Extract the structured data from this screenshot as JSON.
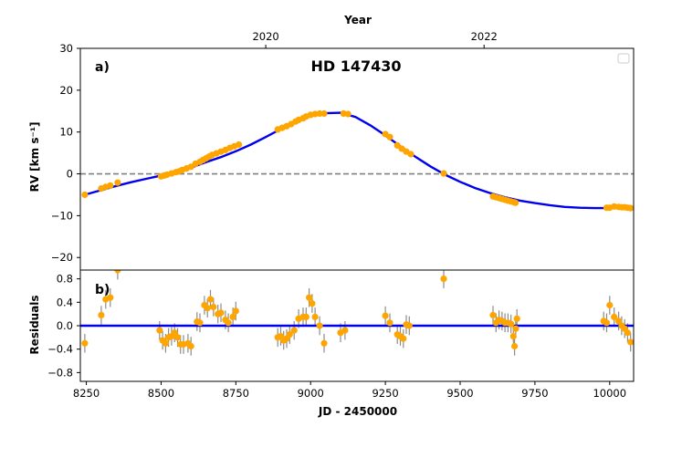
{
  "chart_data": {
    "type": "scatter",
    "title": "HD 147430",
    "xlabel": "JD - 2450000",
    "top_axis_label": "Year",
    "top_axis_ticks": [
      {
        "label": "2020",
        "jd": 8850
      },
      {
        "label": "2022",
        "jd": 9580
      }
    ],
    "x_ticks": [
      "8250",
      "8500",
      "8750",
      "9000",
      "9250",
      "9500",
      "9750",
      "10000"
    ],
    "xlim": [
      8230,
      10080
    ],
    "panels": [
      {
        "label": "a)",
        "ylabel": "RV [km s⁻¹]",
        "ylim": [
          -23,
          30
        ],
        "y_ticks": [
          "−20",
          "−10",
          "0",
          "10",
          "20",
          "30"
        ],
        "y_tick_values": [
          -20,
          -10,
          0,
          10,
          20,
          30
        ],
        "zero_line": "dashed",
        "legend": "top-right (empty)",
        "model_curve": {
          "color": "#0000ee",
          "x": [
            8250,
            8300,
            8350,
            8400,
            8450,
            8500,
            8550,
            8600,
            8650,
            8700,
            8750,
            8800,
            8850,
            8900,
            8950,
            9000,
            9050,
            9100,
            9150,
            9200,
            9250,
            9300,
            9350,
            9400,
            9450,
            9500,
            9550,
            9600,
            9650,
            9700,
            9750,
            9800,
            9850,
            9900,
            9950,
            10000,
            10050,
            10080
          ],
          "y": [
            -4.9,
            -3.9,
            -2.9,
            -2.0,
            -1.2,
            -0.4,
            0.5,
            1.5,
            2.8,
            4.0,
            5.4,
            7.0,
            8.8,
            10.7,
            12.4,
            13.8,
            14.5,
            14.6,
            13.6,
            11.6,
            9.2,
            6.6,
            4.1,
            1.8,
            -0.2,
            -1.9,
            -3.4,
            -4.6,
            -5.6,
            -6.4,
            -7.0,
            -7.5,
            -7.9,
            -8.1,
            -8.2,
            -8.2,
            -8.1,
            -8.1
          ]
        },
        "series": [
          {
            "color": "#ffa500",
            "x": [
              8245,
              8300,
              8315,
              8330,
              8355,
              8500,
              8510,
              8520,
              8535,
              8550,
              8560,
              8570,
              8585,
              8600,
              8615,
              8630,
              8640,
              8650,
              8660,
              8670,
              8685,
              8700,
              8715,
              8730,
              8745,
              8760,
              8890,
              8905,
              8920,
              8935,
              8950,
              8960,
              8975,
              8985,
              9000,
              9015,
              9030,
              9045,
              9110,
              9125,
              9250,
              9265,
              9290,
              9305,
              9320,
              9335,
              9445,
              9610,
              9620,
              9630,
              9640,
              9650,
              9660,
              9670,
              9680,
              9685,
              9990,
              10000,
              10015,
              10030,
              10040,
              10050,
              10060,
              10070
            ],
            "y": [
              -5.0,
              -3.5,
              -3.1,
              -2.8,
              -2.1,
              -0.6,
              -0.4,
              -0.2,
              0.1,
              0.4,
              0.6,
              0.9,
              1.3,
              1.7,
              2.4,
              2.9,
              3.3,
              3.7,
              4.1,
              4.5,
              4.9,
              5.3,
              5.7,
              6.2,
              6.6,
              7.0,
              10.6,
              11.0,
              11.4,
              11.9,
              12.5,
              12.9,
              13.3,
              13.7,
              14.1,
              14.3,
              14.4,
              14.4,
              14.4,
              14.3,
              9.5,
              8.8,
              6.8,
              6.0,
              5.3,
              4.7,
              0.1,
              -5.4,
              -5.6,
              -5.8,
              -6.0,
              -6.2,
              -6.4,
              -6.6,
              -6.8,
              -6.9,
              -8.1,
              -8.1,
              -7.8,
              -7.9,
              -8.0,
              -8.0,
              -8.1,
              -8.2
            ]
          }
        ]
      },
      {
        "label": "b)",
        "ylabel": "Residuals",
        "ylim": [
          -0.95,
          0.95
        ],
        "y_ticks": [
          "−0.8",
          "−0.4",
          "0.0",
          "0.4",
          "0.8"
        ],
        "y_tick_values": [
          -0.8,
          -0.4,
          0.0,
          0.4,
          0.8
        ],
        "zero_line": "solid",
        "series": [
          {
            "color": "#ffa500",
            "x": [
              8245,
              8300,
              8315,
              8330,
              8355,
              8495,
              8505,
              8515,
              8525,
              8535,
              8545,
              8555,
              8565,
              8575,
              8590,
              8600,
              8620,
              8630,
              8645,
              8655,
              8665,
              8675,
              8690,
              8700,
              8715,
              8725,
              8740,
              8750,
              8890,
              8900,
              8910,
              8920,
              8930,
              8945,
              8960,
              8975,
              8985,
              8995,
              9005,
              9015,
              9030,
              9045,
              9100,
              9115,
              9250,
              9265,
              9290,
              9300,
              9310,
              9320,
              9330,
              9445,
              9610,
              9620,
              9630,
              9640,
              9650,
              9660,
              9670,
              9678,
              9682,
              9686,
              9690,
              9980,
              9990,
              10000,
              10015,
              10030,
              10040,
              10050,
              10060,
              10070
            ],
            "y": [
              -0.3,
              0.18,
              0.45,
              0.48,
              0.95,
              -0.08,
              -0.25,
              -0.3,
              -0.2,
              -0.18,
              -0.12,
              -0.2,
              -0.32,
              -0.32,
              -0.3,
              -0.35,
              0.07,
              0.05,
              0.35,
              0.3,
              0.45,
              0.32,
              0.2,
              0.22,
              0.1,
              0.05,
              0.15,
              0.25,
              -0.2,
              -0.18,
              -0.25,
              -0.22,
              -0.15,
              -0.08,
              0.12,
              0.15,
              0.15,
              0.48,
              0.38,
              0.15,
              0.0,
              -0.3,
              -0.12,
              -0.08,
              0.17,
              0.05,
              -0.15,
              -0.18,
              -0.22,
              0.02,
              0.0,
              0.8,
              0.18,
              0.05,
              0.1,
              0.08,
              0.05,
              0.05,
              0.03,
              -0.18,
              -0.35,
              -0.05,
              0.12,
              0.08,
              0.05,
              0.35,
              0.15,
              0.08,
              0.0,
              -0.05,
              -0.12,
              -0.28
            ]
          }
        ]
      }
    ]
  }
}
